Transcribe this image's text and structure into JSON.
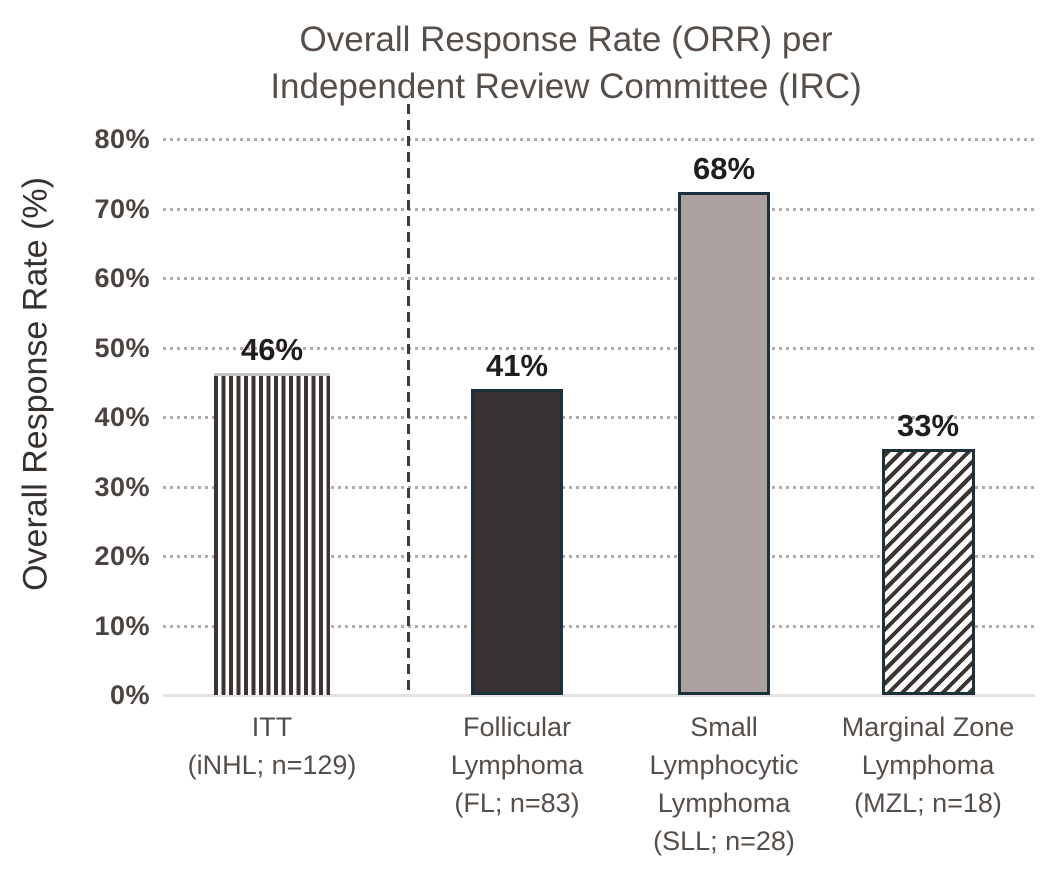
{
  "chart_data": {
    "type": "bar",
    "title": "Overall Response Rate (ORR) per Independent Review Committee (IRC)",
    "title_lines": [
      "Overall Response Rate (ORR) per",
      "Independent Review Committee (IRC)"
    ],
    "ylabel": "Overall Response Rate (%)",
    "xlabel": "",
    "ylim": [
      0,
      80
    ],
    "ytick_step": 10,
    "yticks": [
      {
        "value": 80,
        "label": "80%"
      },
      {
        "value": 70,
        "label": "70%"
      },
      {
        "value": 60,
        "label": "60%"
      },
      {
        "value": 50,
        "label": "50%"
      },
      {
        "value": 40,
        "label": "40%"
      },
      {
        "value": 30,
        "label": "30%"
      },
      {
        "value": 20,
        "label": "20%"
      },
      {
        "value": 10,
        "label": "10%"
      },
      {
        "value": 0,
        "label": "0%"
      }
    ],
    "grid": {
      "style": "dotted-horizontal",
      "color": "#b2acaa",
      "baseline_color": "#e5e2e1"
    },
    "legend": "none",
    "divider": {
      "style": "dashed-vertical",
      "position": "between ITT and disease subgroups",
      "color": "#3e3b39"
    },
    "categories": [
      "ITT (iNHL; n=129)",
      "Follicular Lymphoma (FL; n=83)",
      "Small Lymphocytic Lymphoma (SLL; n=28)",
      "Marginal Zone Lymphoma (MZL; n=18)"
    ],
    "values": [
      46,
      41,
      68,
      33
    ],
    "bars": [
      {
        "key": "itt",
        "category_lines": [
          "ITT",
          "(iNHL; n=129)"
        ],
        "value_label": "46%",
        "value": 46,
        "rendered_height_pct": 46.3,
        "pattern": "vertical-stripes",
        "fill": "#ffffff",
        "stripe_color": "#3a3433",
        "border_color": "#c9c3c0"
      },
      {
        "key": "fl",
        "category_lines": [
          "Follicular",
          "Lymphoma",
          "(FL; n=83)"
        ],
        "value_label": "41%",
        "value": 41,
        "rendered_height_pct": 44.0,
        "pattern": "solid",
        "fill": "#393233",
        "border_color": "#1d313d"
      },
      {
        "key": "sll",
        "category_lines": [
          "Small",
          "Lymphocytic",
          "Lymphoma",
          "(SLL; n=28)"
        ],
        "value_label": "68%",
        "value": 68,
        "rendered_height_pct": 72.4,
        "pattern": "solid",
        "fill": "#aca19f",
        "border_color": "#1d313d"
      },
      {
        "key": "mzl",
        "category_lines": [
          "Marginal Zone",
          "Lymphoma",
          "(MZL; n=18)"
        ],
        "value_label": "33%",
        "value": 33,
        "rendered_height_pct": 35.4,
        "pattern": "diagonal-stripes",
        "fill": "#ffffff",
        "stripe_color": "#3a3433",
        "border_color": "#1d313d"
      }
    ],
    "colors": {
      "title_text": "#564e49",
      "axis_text": "#4a433f",
      "value_label_text": "#211d1b",
      "dark_bar": "#393233",
      "gray_bar": "#aca19f",
      "bar_border_navy": "#1d313d",
      "grid_dot": "#b2acaa"
    }
  }
}
